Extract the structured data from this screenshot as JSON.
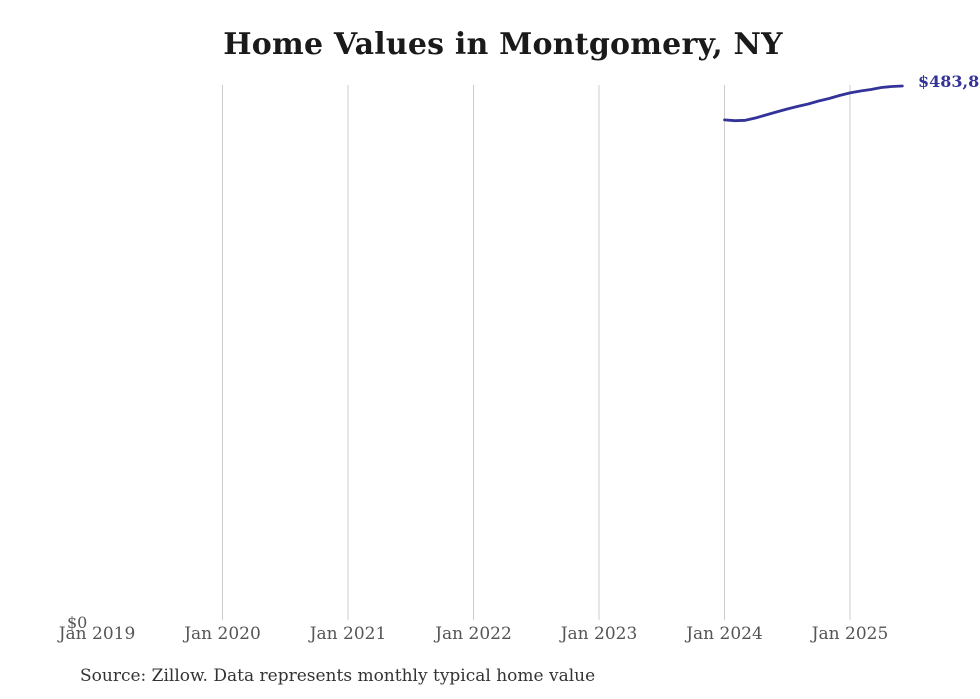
{
  "title": "Home Values in Montgomery, NY",
  "source_note": "Source: Zillow. Data represents monthly typical home value",
  "axis": {
    "zero_label": "$0"
  },
  "annotations": {
    "end_value_label": "$483,8"
  },
  "colors": {
    "line": "#333399",
    "end_label_text": "#333399",
    "gridline": "#cccccc",
    "title_text": "#1a1a1a",
    "tick_text": "#555555",
    "source_text": "#333333",
    "background": "#ffffff"
  },
  "chart_data": {
    "type": "line",
    "title": "Home Values in Montgomery, NY",
    "xlabel": "",
    "ylabel": "",
    "ylim": [
      0,
      484700
    ],
    "grid": "vertical-only",
    "legend": "none",
    "x_ticks": [
      {
        "label": "Jan 2019",
        "gridline": false
      },
      {
        "label": "Jan 2020",
        "gridline": true
      },
      {
        "label": "Jan 2021",
        "gridline": true
      },
      {
        "label": "Jan 2022",
        "gridline": true
      },
      {
        "label": "Jan 2023",
        "gridline": true
      },
      {
        "label": "Jan 2024",
        "gridline": true
      },
      {
        "label": "Jan 2025",
        "gridline": true
      }
    ],
    "series": [
      {
        "name": "Monthly typical home value",
        "x": [
          "Jan 2024",
          "Feb 2024",
          "Mar 2024",
          "Apr 2024",
          "May 2024",
          "Jun 2024",
          "Jul 2024",
          "Aug 2024",
          "Sep 2024",
          "Oct 2024",
          "Nov 2024",
          "Dec 2024",
          "Jan 2025",
          "Feb 2025",
          "Mar 2025",
          "Apr 2025",
          "May 2025",
          "Jun 2025"
        ],
        "values": [
          453100,
          452400,
          452700,
          454900,
          457600,
          460300,
          463000,
          465300,
          467500,
          470200,
          472500,
          475200,
          477500,
          479300,
          480600,
          482400,
          483300,
          483800
        ]
      }
    ]
  }
}
